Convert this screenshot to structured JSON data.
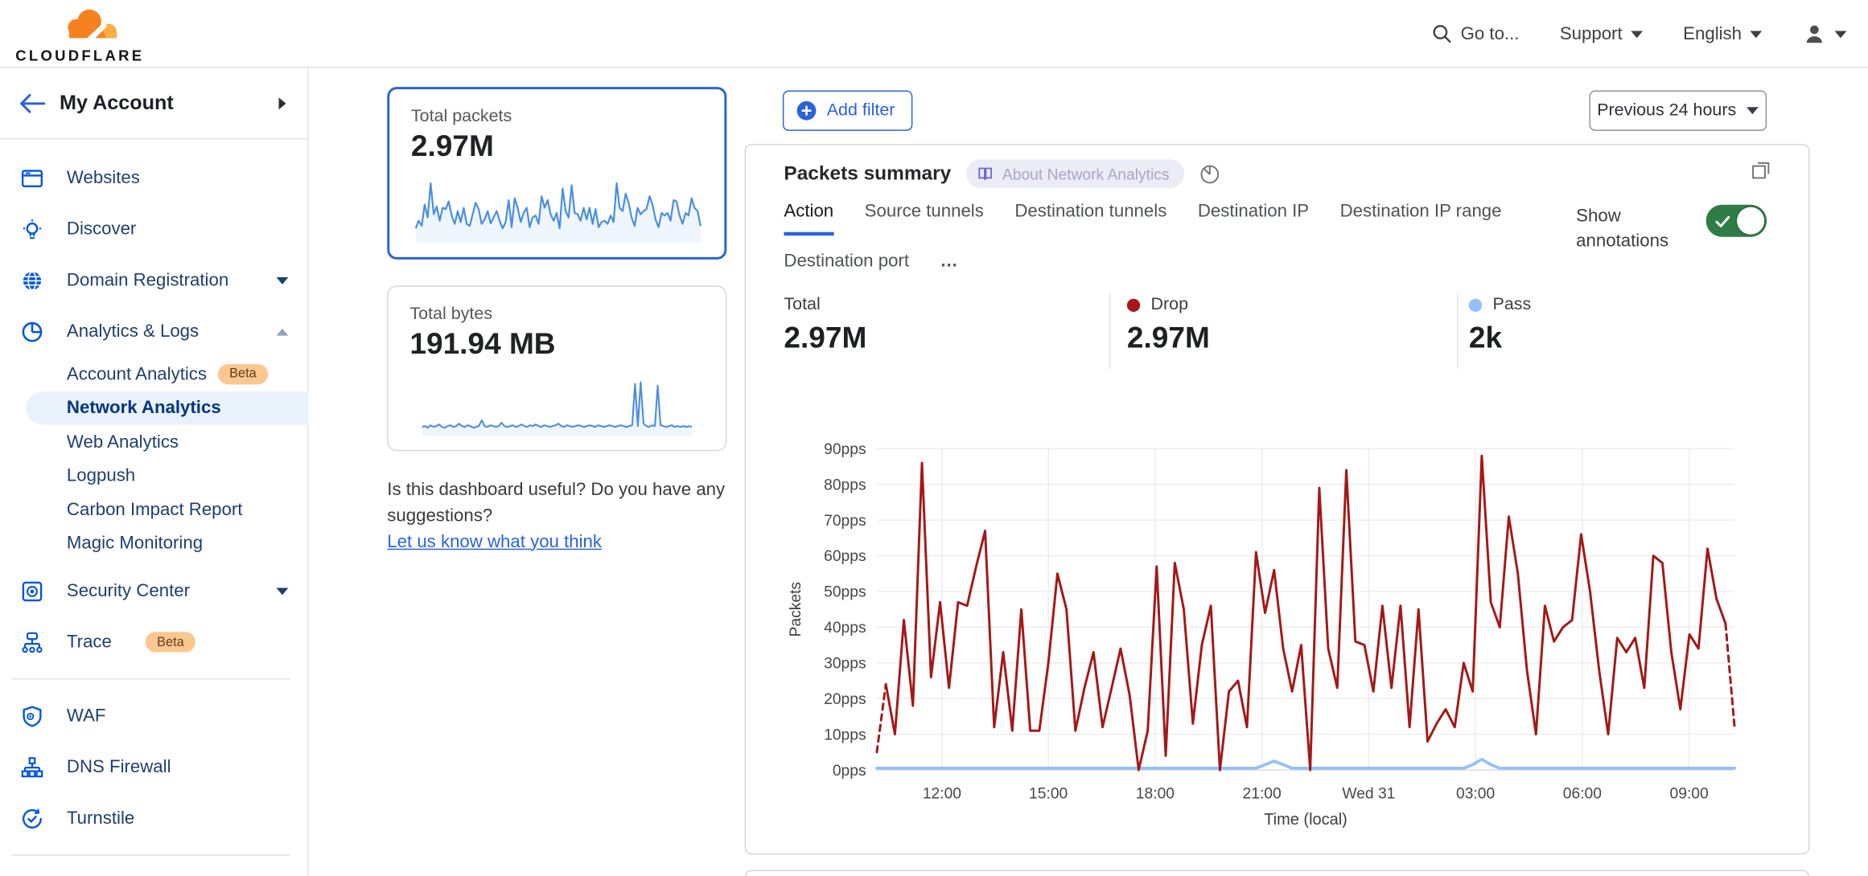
{
  "header": {
    "logo_text": "CLOUDFLARE",
    "goto_label": "Go to...",
    "support_label": "Support",
    "language_label": "English"
  },
  "sidebar": {
    "account_label": "My Account",
    "items": [
      {
        "label": "Websites"
      },
      {
        "label": "Discover"
      },
      {
        "label": "Domain Registration"
      },
      {
        "label": "Analytics & Logs"
      },
      {
        "label": "Account Analytics",
        "badge": "Beta"
      },
      {
        "label": "Network Analytics",
        "active": true
      },
      {
        "label": "Web Analytics"
      },
      {
        "label": "Logpush"
      },
      {
        "label": "Carbon Impact Report"
      },
      {
        "label": "Magic Monitoring"
      },
      {
        "label": "Security Center"
      },
      {
        "label": "Trace",
        "badge": "Beta"
      },
      {
        "label": "WAF"
      },
      {
        "label": "DNS Firewall"
      },
      {
        "label": "Turnstile"
      }
    ]
  },
  "cards": {
    "packets": {
      "label": "Total packets",
      "value": "2.97M"
    },
    "bytes": {
      "label": "Total bytes",
      "value": "191.94 MB"
    }
  },
  "feedback": {
    "question": "Is this dashboard useful? Do you have any suggestions?",
    "link_label": "Let us know what you think"
  },
  "toolbar": {
    "add_filter_label": "Add filter",
    "time_range_label": "Previous 24 hours"
  },
  "panel": {
    "title": "Packets summary",
    "about_tag": "About Network Analytics",
    "tabs": [
      "Action",
      "Source tunnels",
      "Destination tunnels",
      "Destination IP",
      "Destination IP range",
      "Destination port"
    ],
    "more_label": "…",
    "show_annotations_label": "Show annotations",
    "stats": [
      {
        "label": "Total",
        "value": "2.97M",
        "dot_color": ""
      },
      {
        "label": "Drop",
        "value": "2.97M",
        "dot_color": "#a41818"
      },
      {
        "label": "Pass",
        "value": "2k",
        "dot_color": "#92c1f8"
      }
    ]
  },
  "colors": {
    "accent_blue": "#2b63d9",
    "icon_blue": "#0055dc",
    "drop_red": "#a41818",
    "pass_blue": "#92c1f8",
    "toggle_green": "#2e7d46",
    "beta_badge_bg": "#fac78f"
  },
  "icons": {
    "search": "magnifier",
    "add_filter": "plus-circle",
    "panel_expand": "overlap-squares",
    "about": "book",
    "panel_meta": "pie-circle",
    "toggle_state": "check"
  },
  "chart_data": [
    {
      "type": "line",
      "title": "Packets summary",
      "xlabel": "Time (local)",
      "ylabel": "Packets",
      "ylim": [
        0,
        90
      ],
      "ytick_step": 10,
      "ytick_suffix": "pps",
      "grid": true,
      "x_ticks": [
        {
          "label": "12:00",
          "f": 0.076
        },
        {
          "label": "15:00",
          "f": 0.2
        },
        {
          "label": "18:00",
          "f": 0.3245
        },
        {
          "label": "21:00",
          "f": 0.449
        },
        {
          "label": "Wed 31",
          "f": 0.5735
        },
        {
          "label": "03:00",
          "f": 0.698
        },
        {
          "label": "06:00",
          "f": 0.8225
        },
        {
          "label": "09:00",
          "f": 0.947
        }
      ],
      "series": [
        {
          "name": "Drop",
          "color": "#a41818",
          "width": 2,
          "dashed_head": true,
          "dashed_tail": true,
          "values": [
            5,
            24,
            10,
            42,
            18,
            86,
            26,
            47,
            23,
            47,
            46,
            57,
            67,
            12,
            33,
            11,
            45,
            11,
            11,
            30,
            55,
            45,
            11,
            23,
            33,
            12,
            23,
            34,
            21,
            0,
            11,
            57,
            4,
            58,
            45,
            13,
            35,
            46,
            0,
            22,
            25,
            12,
            61,
            44,
            56,
            34,
            22,
            35,
            0,
            79,
            34,
            23,
            84,
            36,
            35,
            22,
            46,
            23,
            46,
            12,
            45,
            8,
            13,
            17,
            12,
            30,
            22,
            88,
            47,
            40,
            71,
            55,
            28,
            10,
            46,
            36,
            40,
            42,
            66,
            50,
            28,
            10,
            37,
            33,
            37,
            23,
            60,
            58,
            33,
            17,
            38,
            34,
            62,
            48,
            41,
            12
          ]
        },
        {
          "name": "Pass",
          "color": "#92c1f8",
          "width": 2.5,
          "dashed_head": false,
          "dashed_tail": false,
          "values": [
            0.5,
            0.5,
            0.5,
            0.5,
            0.5,
            0.5,
            0.5,
            0.5,
            0.5,
            0.5,
            0.5,
            0.5,
            0.5,
            0.5,
            0.5,
            0.5,
            0.5,
            0.5,
            0.5,
            0.5,
            0.5,
            0.5,
            0.5,
            0.5,
            0.5,
            0.5,
            0.5,
            0.5,
            0.5,
            0.5,
            0.5,
            0.5,
            0.5,
            0.5,
            0.5,
            0.5,
            0.5,
            0.5,
            0.5,
            0.5,
            0.5,
            0.5,
            0.5,
            1.5,
            2.5,
            1.5,
            0.5,
            0.5,
            0.5,
            0.5,
            0.5,
            0.5,
            0.5,
            0.5,
            0.5,
            0.5,
            0.5,
            0.5,
            0.5,
            0.5,
            0.5,
            0.5,
            0.5,
            0.5,
            0.5,
            0.5,
            1.5,
            3,
            1.5,
            0.5,
            0.5,
            0.5,
            0.5,
            0.5,
            0.5,
            0.5,
            0.5,
            0.5,
            0.5,
            0.5,
            0.5,
            0.5,
            0.5,
            0.5,
            0.5,
            0.5,
            0.5,
            0.5,
            0.5,
            0.5,
            0.5,
            0.5,
            0.5,
            0.5,
            0.5,
            0.5
          ]
        }
      ]
    },
    {
      "type": "area",
      "title": "Total packets sparkline",
      "color": "#4a8fe0",
      "max": 95,
      "values": [
        18,
        30,
        22,
        55,
        35,
        88,
        40,
        52,
        30,
        50,
        48,
        60,
        38,
        25,
        45,
        28,
        50,
        25,
        22,
        40,
        58,
        48,
        25,
        32,
        45,
        26,
        35,
        45,
        30,
        18,
        28,
        62,
        20,
        65,
        50,
        28,
        42,
        50,
        20,
        35,
        38,
        25,
        68,
        50,
        62,
        40,
        30,
        42,
        18,
        80,
        45,
        35,
        85,
        42,
        40,
        30,
        50,
        32,
        50,
        25,
        48,
        20,
        28,
        30,
        25,
        38,
        28,
        88,
        50,
        45,
        72,
        58,
        35,
        22,
        50,
        40,
        45,
        48,
        68,
        55,
        32,
        20,
        42,
        38,
        42,
        30,
        62,
        60,
        38,
        25,
        42,
        38,
        65,
        50,
        45,
        22
      ]
    },
    {
      "type": "area",
      "title": "Total bytes sparkline",
      "color": "#4a8fe0",
      "max": 70,
      "values": [
        8,
        9,
        7,
        10,
        8,
        9,
        11,
        8,
        7,
        9,
        10,
        8,
        9,
        12,
        9,
        8,
        10,
        9,
        7,
        8,
        9,
        16,
        9,
        8,
        10,
        9,
        8,
        9,
        13,
        9,
        8,
        9,
        10,
        8,
        9,
        11,
        9,
        8,
        10,
        9,
        11,
        9,
        8,
        10,
        9,
        8,
        9,
        10,
        12,
        9,
        8,
        10,
        9,
        8,
        9,
        10,
        9,
        8,
        9,
        10,
        9,
        8,
        10,
        9,
        8,
        9,
        10,
        9,
        8,
        9,
        10,
        9,
        8,
        9,
        10,
        60,
        9,
        62,
        12,
        9,
        8,
        10,
        9,
        58,
        10,
        9,
        8,
        9,
        10,
        8,
        9,
        8,
        9,
        8,
        9,
        8
      ]
    }
  ]
}
